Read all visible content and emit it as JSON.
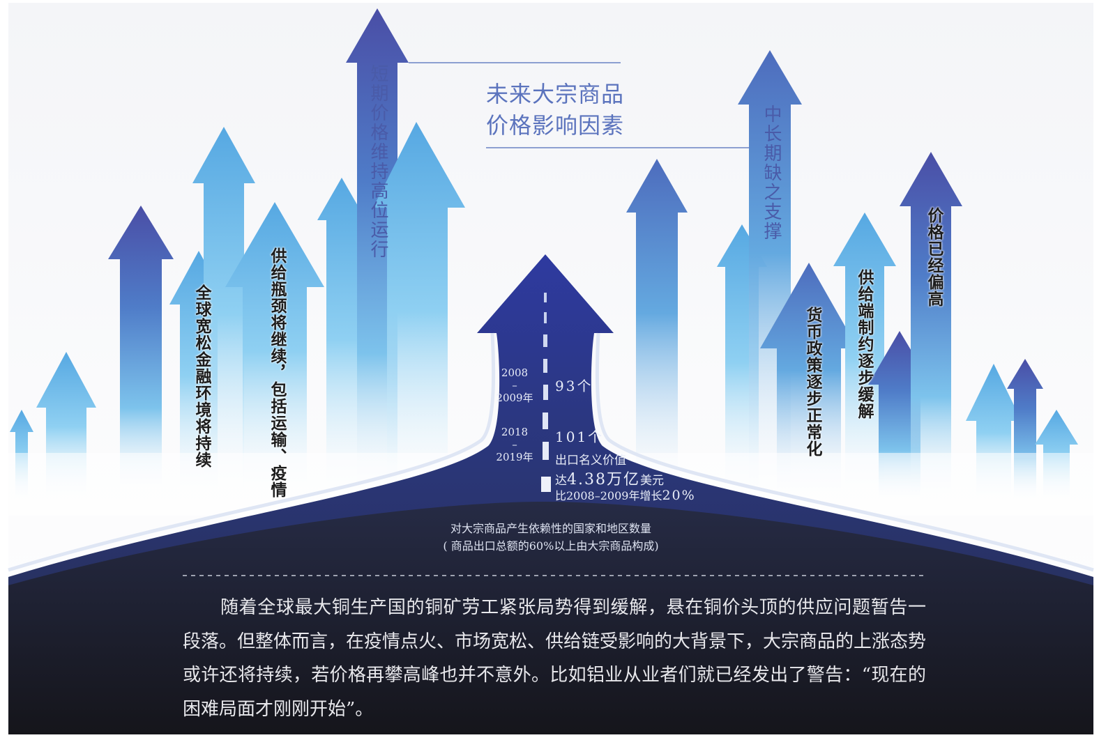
{
  "title": {
    "line1": "未来大宗商品",
    "line2": "价格影响因素"
  },
  "factors": {
    "short_term": "短期价格维持高位运行",
    "mid_long_term": "中长期缺之支撑",
    "loose_financial": "全球宽松金融环境将持续",
    "supply_bottleneck": "供给瓶颈将继续，包括运输、疫情",
    "monetary_policy": "货币政策逐步正常化",
    "supply_constraints": "供给端制约逐步缓解",
    "price_high": "价格已经偏高"
  },
  "road": {
    "period1_line1": "2008",
    "period1_line2": "–",
    "period1_line3": "2009年",
    "period1_count": "93个",
    "period2_line1": "2018",
    "period2_line2": "–",
    "period2_line3": "2019年",
    "period2_count": "101个",
    "export_label": "出口名义价值",
    "export_prefix": "达",
    "export_value": "4.38万亿",
    "export_unit": "美元",
    "growth_prefix": "比2008–2009年增长",
    "growth_value": "20%",
    "caption_line1": "对大宗商品产生依赖性的国家和地区数量",
    "caption_line2": "( 商品出口总额的60%以上由大宗商品构成)"
  },
  "paragraph": "随着全球最大铜生产国的铜矿劳工紧张局势得到缓解，悬在铜价头顶的供应问题暂告一段落。但整体而言，在疫情点火、市场宽松、供给链受影响的大背景下，大宗商品的上涨态势或许还将持续，若价格再攀高峰也并不意外。比如铝业从业者们就已经发出了警告：“现在的困难局面才刚刚开始”。",
  "colors": {
    "arrow_dark": "#4a56a8",
    "arrow_light": "#5ab8e6",
    "road": "#2d3772",
    "bottom_bg": "#1b1c25",
    "title_blue": "#5b73bd"
  }
}
